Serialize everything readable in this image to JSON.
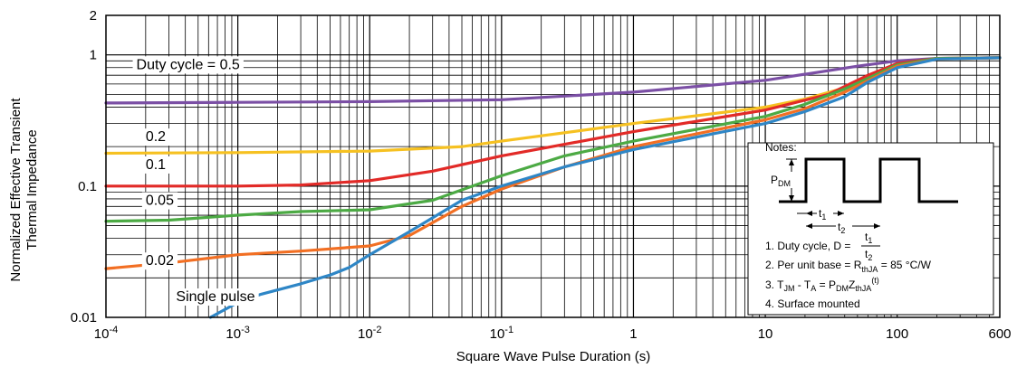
{
  "chart_data": {
    "type": "line",
    "xlabel": "Square Wave Pulse Duration (s)",
    "ylabel": [
      "Normalized Effective Transient",
      "Thermal Impedance"
    ],
    "xscale": "log",
    "yscale": "log",
    "xlim": [
      0.0001,
      600
    ],
    "ylim": [
      0.01,
      2
    ],
    "grid": true,
    "x_ticks": [
      {
        "value": 0.0001,
        "base": "10",
        "exp": "-4"
      },
      {
        "value": 0.001,
        "base": "10",
        "exp": "-3"
      },
      {
        "value": 0.01,
        "base": "10",
        "exp": "-2"
      },
      {
        "value": 0.1,
        "base": "10",
        "exp": "-1"
      },
      {
        "value": 1,
        "base": "1",
        "exp": ""
      },
      {
        "value": 10,
        "base": "10",
        "exp": ""
      },
      {
        "value": 100,
        "base": "100",
        "exp": ""
      },
      {
        "value": 600,
        "base": "600",
        "exp": ""
      }
    ],
    "y_ticks": [
      {
        "value": 0.01,
        "label": "0.01"
      },
      {
        "value": 0.1,
        "label": "0.1"
      },
      {
        "value": 1,
        "label": "1"
      },
      {
        "value": 2,
        "label": "2"
      }
    ],
    "series": [
      {
        "name": "Duty cycle = 0.5",
        "color": "#7b4fa5",
        "label_pos": [
          0.00017,
          0.78
        ],
        "points": [
          [
            0.0001,
            0.43
          ],
          [
            0.001,
            0.435
          ],
          [
            0.01,
            0.44
          ],
          [
            0.1,
            0.455
          ],
          [
            1,
            0.52
          ],
          [
            10,
            0.64
          ],
          [
            50,
            0.82
          ],
          [
            100,
            0.9
          ],
          [
            200,
            0.94
          ],
          [
            600,
            0.95
          ]
        ]
      },
      {
        "name": "0.2",
        "color": "#f6c121",
        "label_pos": [
          0.0002,
          0.22
        ],
        "points": [
          [
            0.0001,
            0.178
          ],
          [
            0.001,
            0.18
          ],
          [
            0.01,
            0.185
          ],
          [
            0.05,
            0.2
          ],
          [
            0.1,
            0.22
          ],
          [
            1,
            0.3
          ],
          [
            10,
            0.4
          ],
          [
            20,
            0.46
          ],
          [
            40,
            0.56
          ],
          [
            100,
            0.83
          ],
          [
            200,
            0.93
          ],
          [
            600,
            0.95
          ]
        ]
      },
      {
        "name": "0.1",
        "color": "#e22a27",
        "label_pos": [
          0.0002,
          0.135
        ],
        "points": [
          [
            0.0001,
            0.1
          ],
          [
            0.001,
            0.1
          ],
          [
            0.003,
            0.102
          ],
          [
            0.01,
            0.11
          ],
          [
            0.03,
            0.13
          ],
          [
            0.1,
            0.17
          ],
          [
            1,
            0.26
          ],
          [
            10,
            0.38
          ],
          [
            30,
            0.5
          ],
          [
            60,
            0.7
          ],
          [
            100,
            0.86
          ],
          [
            200,
            0.94
          ],
          [
            600,
            0.95
          ]
        ]
      },
      {
        "name": "0.05",
        "color": "#4caa44",
        "label_pos": [
          0.0002,
          0.072
        ],
        "points": [
          [
            0.0001,
            0.054
          ],
          [
            0.0003,
            0.055
          ],
          [
            0.001,
            0.06
          ],
          [
            0.003,
            0.064
          ],
          [
            0.01,
            0.066
          ],
          [
            0.03,
            0.078
          ],
          [
            0.1,
            0.12
          ],
          [
            0.3,
            0.17
          ],
          [
            1,
            0.22
          ],
          [
            10,
            0.34
          ],
          [
            20,
            0.42
          ],
          [
            40,
            0.55
          ],
          [
            100,
            0.84
          ],
          [
            200,
            0.94
          ],
          [
            600,
            0.95
          ]
        ]
      },
      {
        "name": "0.02",
        "color": "#f26f23",
        "label_pos": [
          0.0002,
          0.025
        ],
        "points": [
          [
            0.0001,
            0.0235
          ],
          [
            0.0003,
            0.026
          ],
          [
            0.001,
            0.03
          ],
          [
            0.003,
            0.032
          ],
          [
            0.01,
            0.035
          ],
          [
            0.02,
            0.042
          ],
          [
            0.05,
            0.07
          ],
          [
            0.1,
            0.095
          ],
          [
            0.3,
            0.14
          ],
          [
            1,
            0.2
          ],
          [
            10,
            0.32
          ],
          [
            20,
            0.39
          ],
          [
            40,
            0.52
          ],
          [
            100,
            0.82
          ],
          [
            200,
            0.93
          ],
          [
            600,
            0.95
          ]
        ]
      },
      {
        "name": "Single pulse",
        "color": "#2e86c6",
        "label_pos": [
          0.00034,
          0.0133
        ],
        "points": [
          [
            0.00062,
            0.01
          ],
          [
            0.001,
            0.013
          ],
          [
            0.0015,
            0.015
          ],
          [
            0.003,
            0.018
          ],
          [
            0.005,
            0.021
          ],
          [
            0.007,
            0.024
          ],
          [
            0.01,
            0.03
          ],
          [
            0.02,
            0.045
          ],
          [
            0.05,
            0.078
          ],
          [
            0.1,
            0.1
          ],
          [
            0.3,
            0.14
          ],
          [
            1,
            0.19
          ],
          [
            10,
            0.3
          ],
          [
            20,
            0.37
          ],
          [
            40,
            0.48
          ],
          [
            60,
            0.62
          ],
          [
            100,
            0.8
          ],
          [
            200,
            0.93
          ],
          [
            600,
            0.95
          ]
        ]
      }
    ],
    "notes": {
      "title": "Notes:",
      "pdm": {
        "base": "P",
        "sub": "DM"
      },
      "t1": {
        "base": "t",
        "sub": "1"
      },
      "t2": {
        "base": "t",
        "sub": "2"
      },
      "line1": {
        "prefix": "1. Duty cycle, D = ",
        "num": "t",
        "num_sub": "1",
        "den": "t",
        "den_sub": "2"
      },
      "line2": {
        "prefix": "2. Per unit base = R",
        "sub": "thJA",
        "suffix": " = 85 °C/W"
      },
      "line3": {
        "a": "3. T",
        "a_sub": "JM",
        "b": " - T",
        "b_sub": "A",
        "c": " = P",
        "c_sub": "DM",
        "d": "Z",
        "d_sub": "thJA",
        "e": "(t)"
      },
      "line4": "4. Surface mounted"
    }
  }
}
